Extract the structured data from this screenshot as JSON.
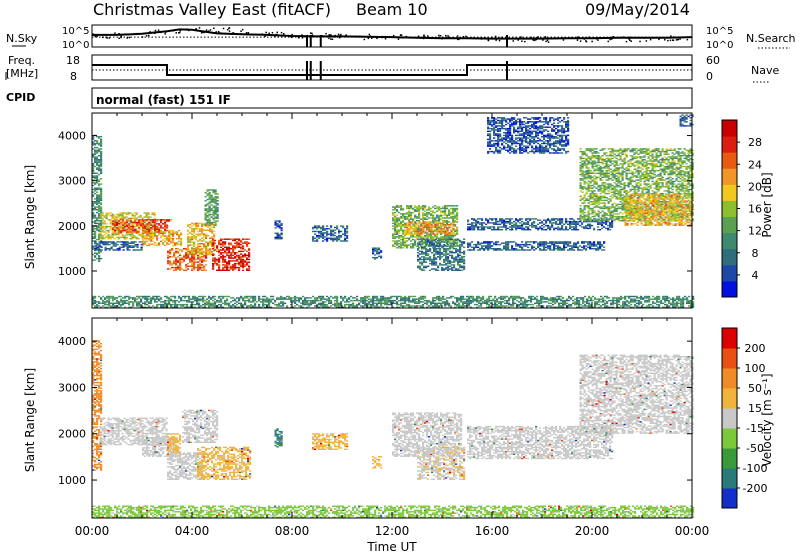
{
  "header": {
    "title": "Christmas Valley East (fitACF)",
    "beam": "Beam 10",
    "date": "09/May/2014"
  },
  "strips": {
    "nsky_label": "N.Sky",
    "nsky_ticks": [
      "10^5",
      "10^0"
    ],
    "nsearch_label": "N.Search",
    "nsearch_ticks": [
      "10^5",
      "10^0"
    ],
    "freq_label_1": "Freq.",
    "freq_label_2": "[MHz]",
    "freq_ticks": [
      "18",
      "8"
    ],
    "nave_label": "Nave",
    "nave_ticks": [
      "60",
      "0"
    ],
    "cpid_label": "CPID",
    "cpid_value": "normal (fast) 151 IF"
  },
  "chart_data": [
    {
      "type": "heatmap",
      "quantity": "Power",
      "xlabel": "",
      "ylabel": "Slant Range [km]",
      "xlim": [
        0,
        24
      ],
      "ylim": [
        180,
        4500
      ],
      "y_ticks": [
        "1000",
        "2000",
        "3000",
        "4000"
      ],
      "colorbar": {
        "label": "Power [dB]",
        "ticks": [
          "28",
          "24",
          "20",
          "16",
          "12",
          "8",
          "4"
        ],
        "range": [
          0,
          32
        ],
        "colors": [
          "#0010e0",
          "#1e48a8",
          "#2f6e7a",
          "#3d8a6e",
          "#5aa050",
          "#8cbf2e",
          "#f0c81e",
          "#f09628",
          "#e85a10",
          "#dc1e10",
          "#c80000"
        ]
      },
      "echo_regions": [
        {
          "t": [
            0.0,
            0.4
          ],
          "r": [
            1200,
            4000
          ],
          "power": 10
        },
        {
          "t": [
            0.3,
            2.5
          ],
          "r": [
            1700,
            2300
          ],
          "power": 18
        },
        {
          "t": [
            0.8,
            3.2
          ],
          "r": [
            1850,
            2150
          ],
          "power": 26
        },
        {
          "t": [
            2.0,
            3.6
          ],
          "r": [
            1550,
            1900
          ],
          "power": 20
        },
        {
          "t": [
            3.0,
            4.6
          ],
          "r": [
            1000,
            1500
          ],
          "power": 24
        },
        {
          "t": [
            3.8,
            4.9
          ],
          "r": [
            1350,
            2050
          ],
          "power": 20
        },
        {
          "t": [
            4.5,
            5.0
          ],
          "r": [
            2000,
            2800
          ],
          "power": 12
        },
        {
          "t": [
            4.8,
            6.3
          ],
          "r": [
            1000,
            1700
          ],
          "power": 28
        },
        {
          "t": [
            0.1,
            2.0
          ],
          "r": [
            1450,
            1650
          ],
          "power": 6
        },
        {
          "t": [
            7.3,
            7.6
          ],
          "r": [
            1700,
            2100
          ],
          "power": 5
        },
        {
          "t": [
            8.8,
            10.2
          ],
          "r": [
            1650,
            2000
          ],
          "power": 6
        },
        {
          "t": [
            11.2,
            11.6
          ],
          "r": [
            1250,
            1500
          ],
          "power": 6
        },
        {
          "t": [
            12.0,
            14.6
          ],
          "r": [
            1500,
            2450
          ],
          "power": 14
        },
        {
          "t": [
            12.5,
            14.5
          ],
          "r": [
            1800,
            2100
          ],
          "power": 22
        },
        {
          "t": [
            13.0,
            14.9
          ],
          "r": [
            1000,
            1700
          ],
          "power": 8
        },
        {
          "t": [
            15.0,
            20.8
          ],
          "r": [
            1900,
            2150
          ],
          "power": 6
        },
        {
          "t": [
            15.0,
            20.5
          ],
          "r": [
            1450,
            1650
          ],
          "power": 6
        },
        {
          "t": [
            19.5,
            24.0
          ],
          "r": [
            2100,
            3700
          ],
          "power": 14
        },
        {
          "t": [
            21.3,
            24.0
          ],
          "r": [
            2000,
            2700
          ],
          "power": 20
        },
        {
          "t": [
            15.8,
            19.0
          ],
          "r": [
            3600,
            4400
          ],
          "power": 5
        },
        {
          "t": [
            23.5,
            24.0
          ],
          "r": [
            4200,
            4450
          ],
          "power": 6
        },
        {
          "t": [
            0.0,
            24.0
          ],
          "r": [
            180,
            450
          ],
          "power": 10
        }
      ]
    },
    {
      "type": "heatmap",
      "quantity": "Velocity",
      "xlabel": "Time UT",
      "ylabel": "Slant Range [km]",
      "xlim": [
        0,
        24
      ],
      "ylim": [
        180,
        4500
      ],
      "x_ticks": [
        "00:00",
        "04:00",
        "08:00",
        "12:00",
        "16:00",
        "20:00",
        "00:00"
      ],
      "y_ticks": [
        "1000",
        "2000",
        "3000",
        "4000"
      ],
      "colorbar": {
        "label": "Velocity [m s⁻¹]",
        "ticks": [
          "200",
          "100",
          "50",
          "15",
          "-15",
          "-50",
          "-100",
          "-200"
        ],
        "range": [
          -250,
          250
        ],
        "colors": [
          "#1030c8",
          "#2a7a7a",
          "#3a9a3a",
          "#7cc83c",
          "#c8c8c8",
          "#f0b43c",
          "#f08c28",
          "#e85014",
          "#dc0000"
        ]
      },
      "echo_regions": [
        {
          "t": [
            0.0,
            0.4
          ],
          "r": [
            1200,
            4000
          ],
          "velocity": 100
        },
        {
          "t": [
            0.3,
            3.0
          ],
          "r": [
            1750,
            2350
          ],
          "velocity": 0
        },
        {
          "t": [
            2.0,
            3.4
          ],
          "r": [
            1500,
            1900
          ],
          "velocity": 5
        },
        {
          "t": [
            3.0,
            3.5
          ],
          "r": [
            1500,
            2000
          ],
          "velocity": 60
        },
        {
          "t": [
            3.0,
            4.4
          ],
          "r": [
            1000,
            1600
          ],
          "velocity": 0
        },
        {
          "t": [
            3.6,
            5.0
          ],
          "r": [
            1800,
            2500
          ],
          "velocity": 0
        },
        {
          "t": [
            4.2,
            6.3
          ],
          "r": [
            1000,
            1700
          ],
          "velocity": 40
        },
        {
          "t": [
            7.3,
            7.6
          ],
          "r": [
            1700,
            2100
          ],
          "velocity": -150
        },
        {
          "t": [
            8.8,
            10.2
          ],
          "r": [
            1650,
            2000
          ],
          "velocity": 40
        },
        {
          "t": [
            11.2,
            11.6
          ],
          "r": [
            1250,
            1500
          ],
          "velocity": 40
        },
        {
          "t": [
            12.0,
            14.8
          ],
          "r": [
            1500,
            2450
          ],
          "velocity": 0
        },
        {
          "t": [
            13.0,
            14.9
          ],
          "r": [
            1000,
            1700
          ],
          "velocity": 20
        },
        {
          "t": [
            15.0,
            20.8
          ],
          "r": [
            1450,
            2150
          ],
          "velocity": 0
        },
        {
          "t": [
            19.5,
            24.0
          ],
          "r": [
            2000,
            3700
          ],
          "velocity": 0
        },
        {
          "t": [
            0.0,
            24.0
          ],
          "r": [
            180,
            450
          ],
          "velocity": -40
        }
      ]
    },
    {
      "type": "line",
      "quantity": "N.Sky / N.Search",
      "xlim": [
        0,
        24
      ],
      "y_ticks": [
        "10^5",
        "10^0"
      ],
      "nsky_x": [
        0,
        1,
        2,
        3,
        3.5,
        4,
        4.5,
        5,
        6,
        7,
        8,
        9,
        10,
        11,
        12,
        13,
        14,
        15,
        16,
        17,
        18,
        19,
        20,
        21,
        22,
        23,
        24
      ],
      "nsky_y": [
        0.55,
        0.55,
        0.6,
        0.72,
        0.8,
        0.78,
        0.7,
        0.62,
        0.58,
        0.55,
        0.5,
        0.48,
        0.48,
        0.47,
        0.45,
        0.42,
        0.4,
        0.4,
        0.38,
        0.38,
        0.38,
        0.4,
        0.4,
        0.42,
        0.42,
        0.42,
        0.45
      ],
      "nsearch_y": 0.45
    },
    {
      "type": "line",
      "quantity": "Freq. / Nave",
      "xlim": [
        0,
        24
      ],
      "freq_ylim": [
        8,
        18
      ],
      "nave_ylim": [
        0,
        60
      ],
      "freq_x": [
        0,
        3.0,
        3.0,
        15.0,
        15.0,
        24
      ],
      "freq_y": [
        14,
        14,
        10,
        10,
        14,
        14
      ],
      "nave_x": [
        0,
        24
      ],
      "nave_y": [
        24,
        24
      ]
    }
  ]
}
